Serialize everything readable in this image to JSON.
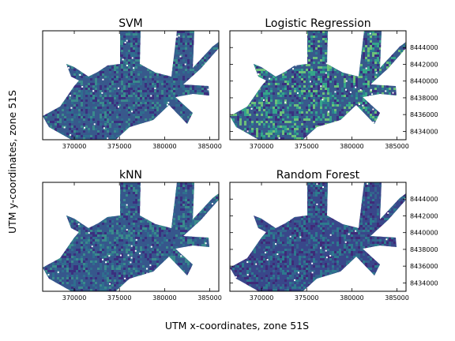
{
  "figure": {
    "xlabel": "UTM x-coordinates, zone 51S",
    "ylabel": "UTM y-coordinates, zone 51S"
  },
  "chart_data": [
    {
      "type": "heatmap",
      "title": "SVM",
      "x_ticks": [
        "370000",
        "375000",
        "380000",
        "385000"
      ],
      "y_ticks": [],
      "xlim": [
        366500,
        386000
      ],
      "ylim": [
        8433000,
        8446000
      ],
      "colormap": "viridis",
      "palette": [
        "#3b2f7f",
        "#38598c",
        "#2f6c8e",
        "#3a8a8c"
      ]
    },
    {
      "type": "heatmap",
      "title": "Logistic Regression",
      "x_ticks": [
        "370000",
        "375000",
        "380000",
        "385000"
      ],
      "y_ticks": [
        "8434000",
        "8436000",
        "8438000",
        "8440000",
        "8442000",
        "8444000"
      ],
      "xlim": [
        366500,
        386000
      ],
      "ylim": [
        8433000,
        8446000
      ],
      "colormap": "viridis",
      "palette": [
        "#3b2f7f",
        "#38598c",
        "#2b7d8e",
        "#35a58a",
        "#6cc07a"
      ]
    },
    {
      "type": "heatmap",
      "title": "kNN",
      "x_ticks": [
        "370000",
        "375000",
        "380000",
        "385000"
      ],
      "y_ticks": [],
      "xlim": [
        366500,
        386000
      ],
      "ylim": [
        8433000,
        8446000
      ],
      "colormap": "viridis",
      "palette": [
        "#3b2f7f",
        "#36578c",
        "#2f6e8e",
        "#3a8a8c"
      ]
    },
    {
      "type": "heatmap",
      "title": "Random Forest",
      "x_ticks": [
        "370000",
        "375000",
        "380000",
        "385000"
      ],
      "y_ticks": [
        "8434000",
        "8436000",
        "8438000",
        "8440000",
        "8442000",
        "8444000"
      ],
      "xlim": [
        366500,
        386000
      ],
      "ylim": [
        8433000,
        8446000
      ],
      "colormap": "viridis",
      "palette": [
        "#3f2a78",
        "#39478a",
        "#33638d",
        "#2d7a8e"
      ]
    }
  ]
}
